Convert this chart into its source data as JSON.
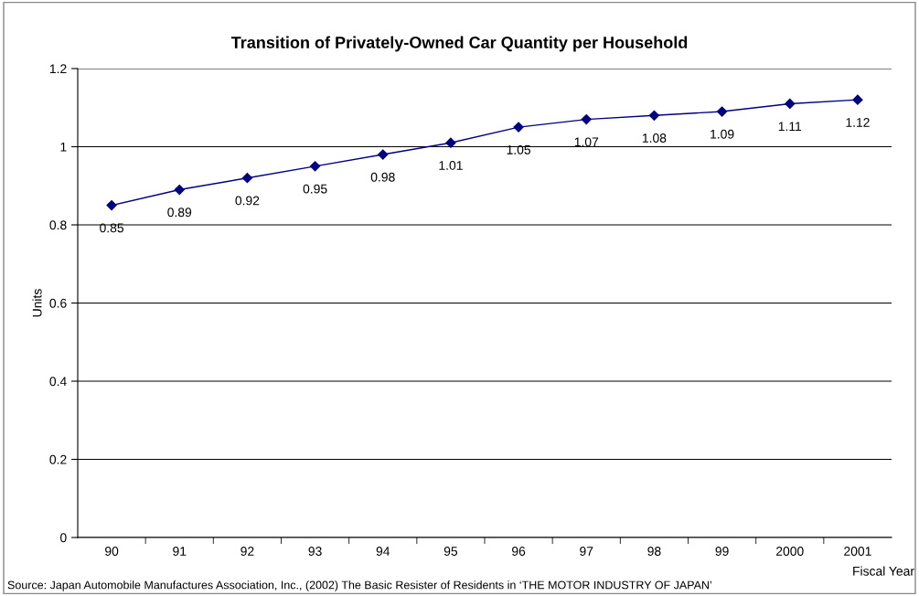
{
  "chart_data": {
    "type": "line",
    "title": "Transition of Privately-Owned Car Quantity per Household",
    "categories": [
      "90",
      "91",
      "92",
      "93",
      "94",
      "95",
      "96",
      "97",
      "98",
      "99",
      "2000",
      "2001"
    ],
    "series": [
      {
        "color": "#000080",
        "values": [
          0.85,
          0.89,
          0.92,
          0.95,
          0.98,
          1.01,
          1.05,
          1.07,
          1.08,
          1.09,
          1.11,
          1.12
        ]
      }
    ],
    "ylabel": "Units",
    "xlabel": "Fiscal Year",
    "ylim": [
      0,
      1.2
    ],
    "yticks": [
      0,
      0.2,
      0.4,
      0.6,
      0.8,
      1,
      1.2
    ],
    "grid": "y",
    "marker": "diamond",
    "line_style": "solid",
    "data_labels": true,
    "annotations": [
      "Source: Japan Automobile Manufactures Association, Inc., (2002) The Basic Resister of Residents in ‘THE MOTOR INDUSTRY OF JAPAN’"
    ]
  }
}
